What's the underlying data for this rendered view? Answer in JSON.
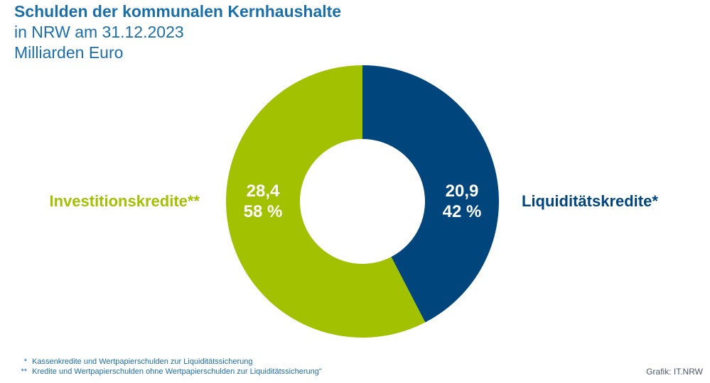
{
  "title": "Schulden der kommunalen Kernhaushalte",
  "subtitle_lines": [
    "in NRW am 31.12.2023",
    "Milliarden Euro"
  ],
  "chart_data": {
    "type": "pie",
    "variant": "donut",
    "title": "Schulden der kommunalen Kernhaushalte",
    "subtitle": "in NRW am 31.12.2023",
    "unit": "Milliarden Euro",
    "slices": [
      {
        "label": "Liquiditätskredite",
        "marker": "*",
        "value": 20.9,
        "value_label": "20,9",
        "percent": 42,
        "percent_label": "42 %",
        "color": "#00457c"
      },
      {
        "label": "Investitionskredite",
        "marker": "**",
        "value": 28.4,
        "value_label": "28,4",
        "percent": 58,
        "percent_label": "58 %",
        "color": "#a2c100"
      }
    ]
  },
  "footnotes": [
    {
      "marker": "*",
      "text": "Kassenkredite und Wertpapierschulden zur Liquiditätssicherung"
    },
    {
      "marker": "**",
      "text": "Kredite und Wertpapierschulden ohne Wertpapierschulden zur Liquiditätssicherung\""
    }
  ],
  "credit": "Grafik: IT.NRW",
  "colors": {
    "title": "#1a6fa8",
    "liquidity": "#00457c",
    "investment": "#a2c100"
  }
}
